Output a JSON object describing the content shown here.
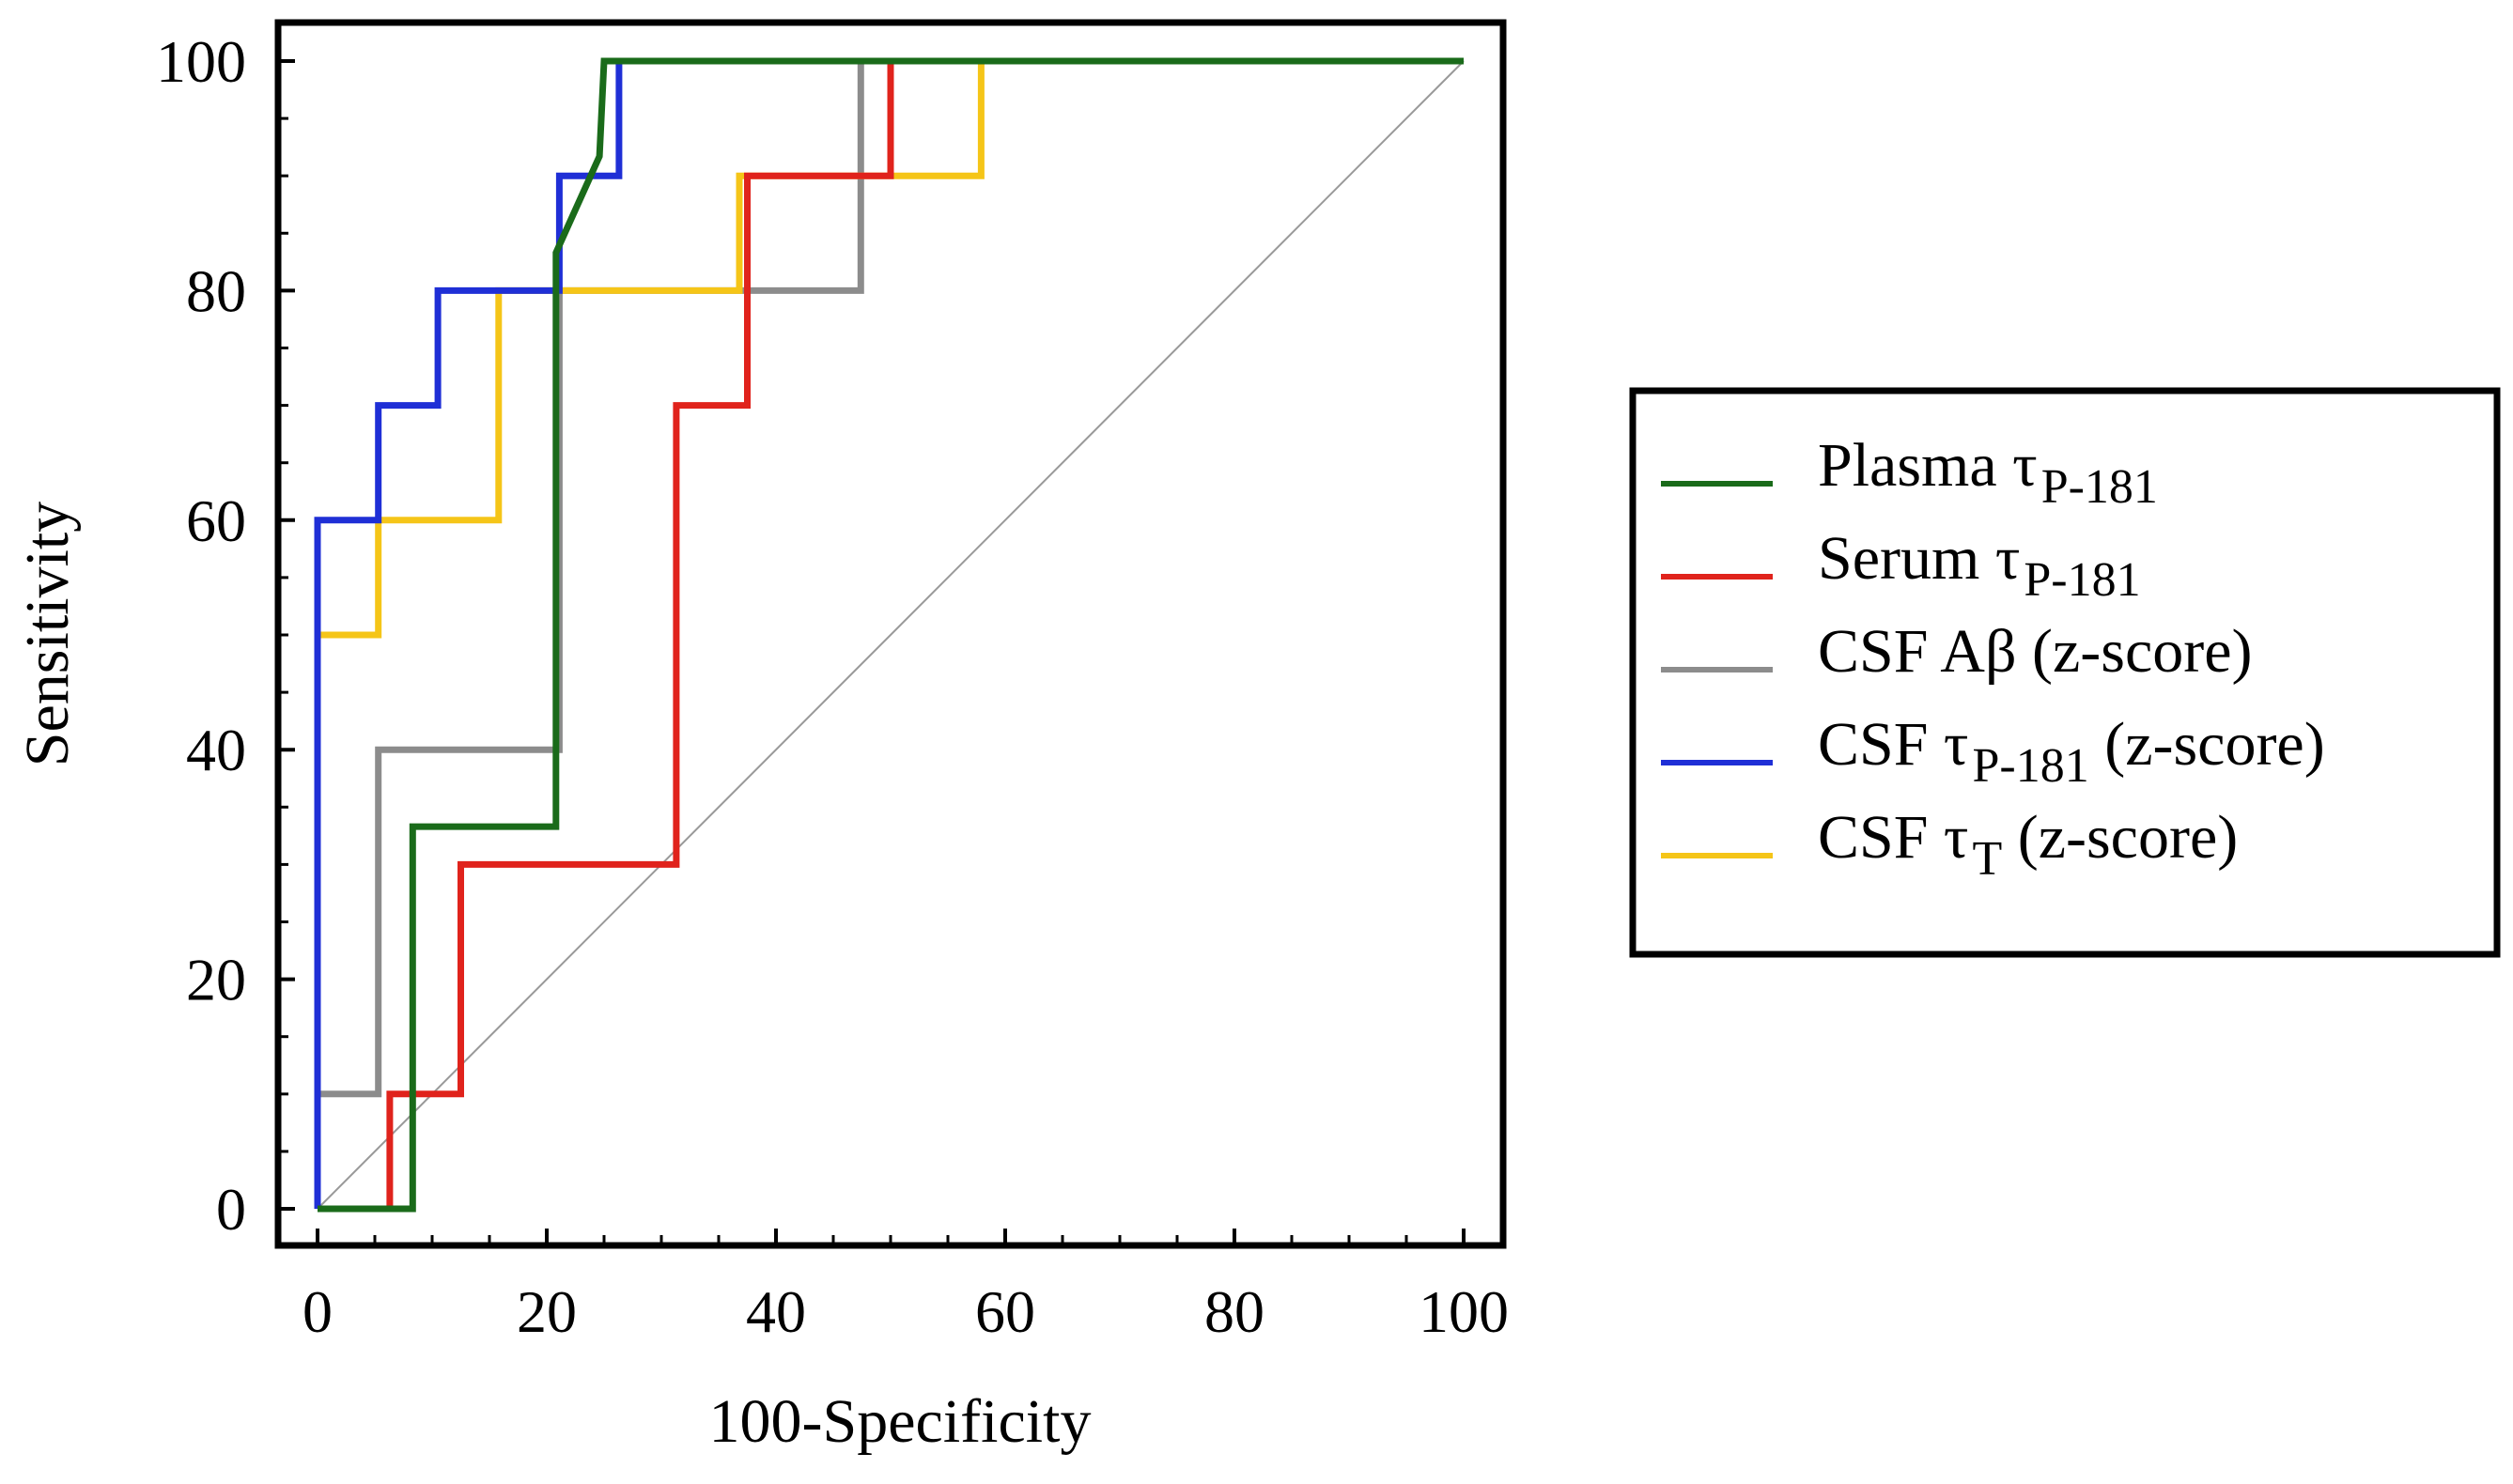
{
  "chart_data": {
    "type": "line",
    "title": "",
    "xlabel": "100-Specificity",
    "ylabel": "Sensitivity",
    "xlim": [
      0,
      100
    ],
    "ylim": [
      0,
      100
    ],
    "xticks": [
      "0",
      "20",
      "40",
      "60",
      "80",
      "100"
    ],
    "yticks": [
      "0",
      "20",
      "40",
      "60",
      "80",
      "100"
    ],
    "legend_position": "right",
    "reference_line": {
      "x": [
        0,
        100
      ],
      "y": [
        0,
        100
      ],
      "color": "#999999"
    },
    "series": [
      {
        "name": "Plasma τP-181",
        "label_main": "Plasma τ",
        "label_sub": "P-181",
        "label_tail": "",
        "color": "#1a6b1a",
        "x": [
          0,
          8.3,
          8.3,
          20.8,
          20.8,
          24.6,
          25,
          100
        ],
        "y": [
          0,
          0,
          33.3,
          33.3,
          83.3,
          91.7,
          100,
          100
        ]
      },
      {
        "name": "Serum τP-181",
        "label_main": "Serum τ",
        "label_sub": "P-181",
        "label_tail": "",
        "color": "#e0231c",
        "x": [
          6.3,
          6.3,
          12.5,
          12.5,
          31.3,
          31.3,
          37.5,
          37.5,
          50,
          50,
          100
        ],
        "y": [
          0,
          10,
          10,
          30,
          30,
          70,
          70,
          90,
          90,
          100,
          100
        ]
      },
      {
        "name": "CSF Aβ (z-score)",
        "label_main": "CSF Aβ (z-score)",
        "label_sub": "",
        "label_tail": "",
        "color": "#8c8c8c",
        "x": [
          0,
          5.3,
          5.3,
          21.1,
          21.1,
          47.4,
          47.4,
          100
        ],
        "y": [
          10,
          10,
          40,
          40,
          80,
          80,
          100,
          100
        ]
      },
      {
        "name": "CSF τP-181 (z-score)",
        "label_main": "CSF τ",
        "label_sub": "P-181",
        "label_tail": " (z-score)",
        "color": "#1f2fd6",
        "x": [
          0,
          0,
          5.3,
          5.3,
          10.5,
          10.5,
          21.1,
          21.1,
          26.3,
          26.3,
          100
        ],
        "y": [
          0,
          60,
          60,
          70,
          70,
          80,
          80,
          90,
          90,
          100,
          100
        ]
      },
      {
        "name": "CSF τT (z-score)",
        "label_main": "CSF τ",
        "label_sub": "T",
        "label_tail": " (z-score)",
        "color": "#f5c518",
        "x": [
          0,
          5.3,
          5.3,
          15.8,
          15.8,
          21.1,
          36.8,
          36.8,
          52.6,
          57.9,
          57.9,
          100
        ],
        "y": [
          50,
          50,
          60,
          60,
          80,
          80,
          80,
          90,
          90,
          90,
          100,
          100
        ]
      }
    ]
  }
}
